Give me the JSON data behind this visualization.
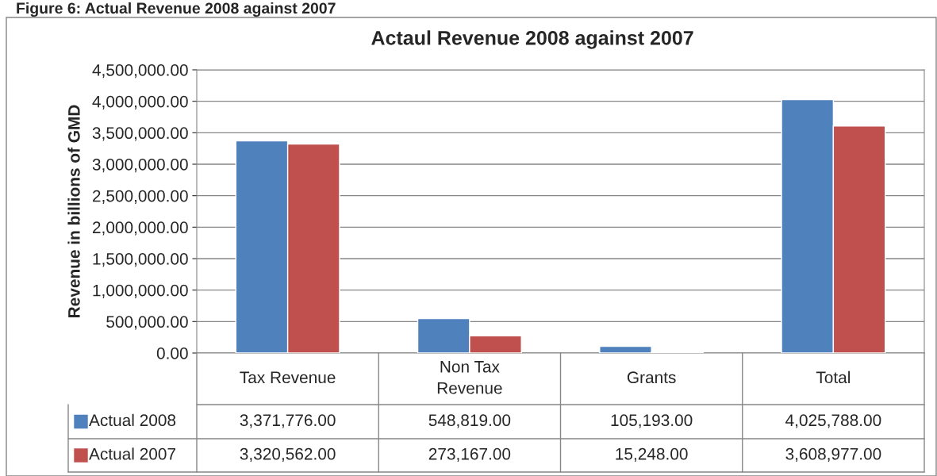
{
  "chart_data": {
    "type": "bar",
    "title": "Actaul Revenue 2008 against 2007",
    "ylabel": "Revenue in billions of GMD",
    "annotations": [
      "Figure 6: Actual Revenue 2008 against 2007"
    ],
    "categories": [
      "Tax Revenue",
      "Non Tax\nRevenue",
      "Grants",
      "Total"
    ],
    "series": [
      {
        "name": "Actual 2008",
        "color": "#4f81bd",
        "values": [
          3371776.0,
          548819.0,
          105193.0,
          4025788.0
        ],
        "value_labels": [
          "3,371,776.00",
          "548,819.00",
          "105,193.00",
          "4,025,788.00"
        ]
      },
      {
        "name": "Actual 2007",
        "color": "#c0504d",
        "values": [
          3320562.0,
          273167.0,
          15248.0,
          3608977.0
        ],
        "value_labels": [
          "3,320,562.00",
          "273,167.00",
          "15,248.00",
          "3,608,977.00"
        ]
      }
    ],
    "ylim": [
      0,
      4500000
    ],
    "yticks": [
      {
        "value": 0,
        "label": "0.00"
      },
      {
        "value": 500000,
        "label": "500,000.00"
      },
      {
        "value": 1000000,
        "label": "1,000,000.00"
      },
      {
        "value": 1500000,
        "label": "1,500,000.00"
      },
      {
        "value": 2000000,
        "label": "2,000,000.00"
      },
      {
        "value": 2500000,
        "label": "2,500,000.00"
      },
      {
        "value": 3000000,
        "label": "3,000,000.00"
      },
      {
        "value": 3500000,
        "label": "3,500,000.00"
      },
      {
        "value": 4000000,
        "label": "4,000,000.00"
      },
      {
        "value": 4500000,
        "label": "4,500,000.00"
      }
    ],
    "grid": "y",
    "legend": "bottom left"
  }
}
